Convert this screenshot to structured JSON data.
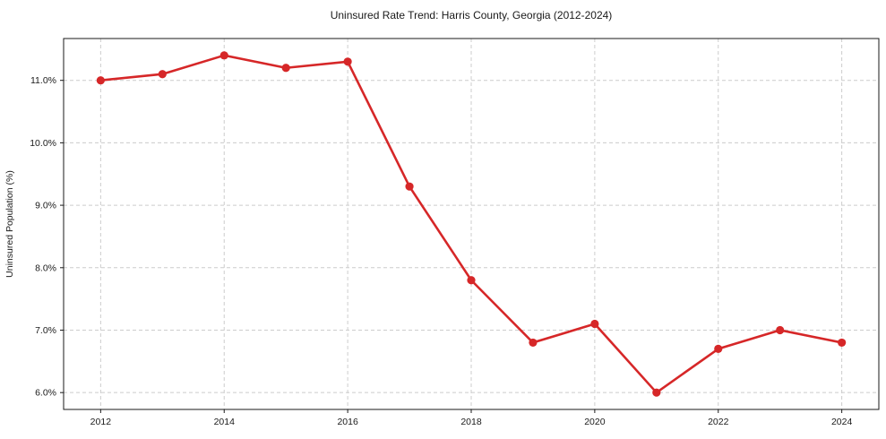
{
  "chart_data": {
    "type": "line",
    "title": "Uninsured Rate Trend: Harris County, Georgia (2012-2024)",
    "xlabel": "",
    "ylabel": "Uninsured Population (%)",
    "x": [
      2012,
      2013,
      2014,
      2015,
      2016,
      2017,
      2018,
      2019,
      2020,
      2021,
      2022,
      2023,
      2024
    ],
    "values": [
      11.0,
      11.1,
      11.4,
      11.2,
      11.3,
      9.3,
      7.8,
      6.8,
      7.1,
      6.0,
      6.7,
      7.0,
      6.8
    ],
    "xlim": [
      2011.4,
      2024.6
    ],
    "ylim": [
      5.73,
      11.67
    ],
    "x_ticks": [
      2012,
      2014,
      2016,
      2018,
      2020,
      2022,
      2024
    ],
    "x_tick_labels": [
      "2012",
      "2014",
      "2016",
      "2018",
      "2020",
      "2022",
      "2024"
    ],
    "y_ticks": [
      6,
      7,
      8,
      9,
      10,
      11
    ],
    "y_tick_labels": [
      "6.0%",
      "7.0%",
      "8.0%",
      "9.0%",
      "10.0%",
      "11.0%"
    ],
    "grid": true,
    "grid_style": "dashed",
    "legend": false,
    "line_color": "#d62728",
    "marker": "o",
    "grid_color": "#cccccc",
    "frame_color": "#1a1a1a",
    "background_color": "#ffffff"
  }
}
